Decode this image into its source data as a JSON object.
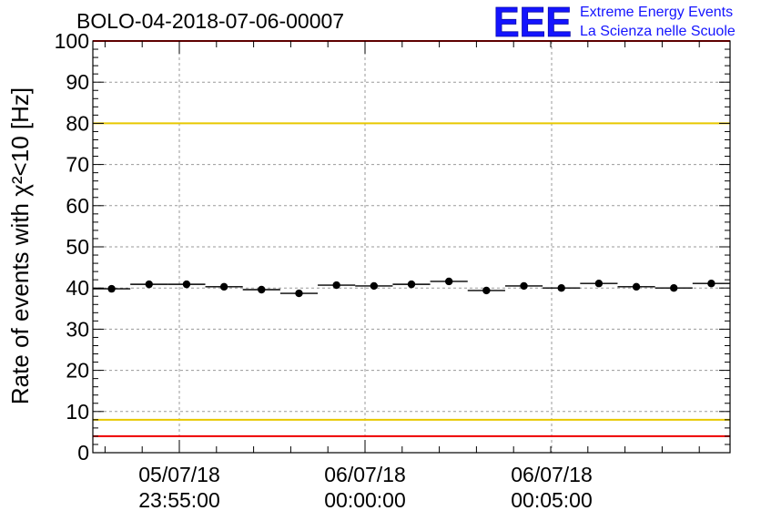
{
  "logo": {
    "letters": "EEE",
    "line1": "Extreme Energy Events",
    "line2": "La Scienza nelle Scuole",
    "color": "#1414ff"
  },
  "chart_data": {
    "type": "scatter",
    "title": "BOLO-04-2018-07-06-00007",
    "ylabel": "Rate of events with χ²<10 [Hz]",
    "xlabel": "",
    "ylim": [
      0,
      100
    ],
    "yticks": [
      0,
      10,
      20,
      30,
      40,
      50,
      60,
      70,
      80,
      90,
      100
    ],
    "grid": true,
    "x_tick_labels": [
      {
        "date": "05/07/18",
        "time": "23:55:00"
      },
      {
        "date": "06/07/18",
        "time": "00:00:00"
      },
      {
        "date": "06/07/18",
        "time": "00:05:00"
      }
    ],
    "series": [
      {
        "values": [
          39.8,
          40.9,
          40.9,
          40.3,
          39.6,
          38.7,
          40.7,
          40.5,
          40.9,
          41.6,
          39.4,
          40.5,
          40.0,
          41.1,
          40.3,
          40.0,
          41.1
        ]
      }
    ],
    "reference_lines": [
      {
        "y": 80,
        "color": "#e8c800"
      },
      {
        "y": 8,
        "color": "#e8c800"
      },
      {
        "y": 4,
        "color": "#ee0000"
      },
      {
        "y": 100,
        "color": "#ee0000"
      }
    ]
  }
}
